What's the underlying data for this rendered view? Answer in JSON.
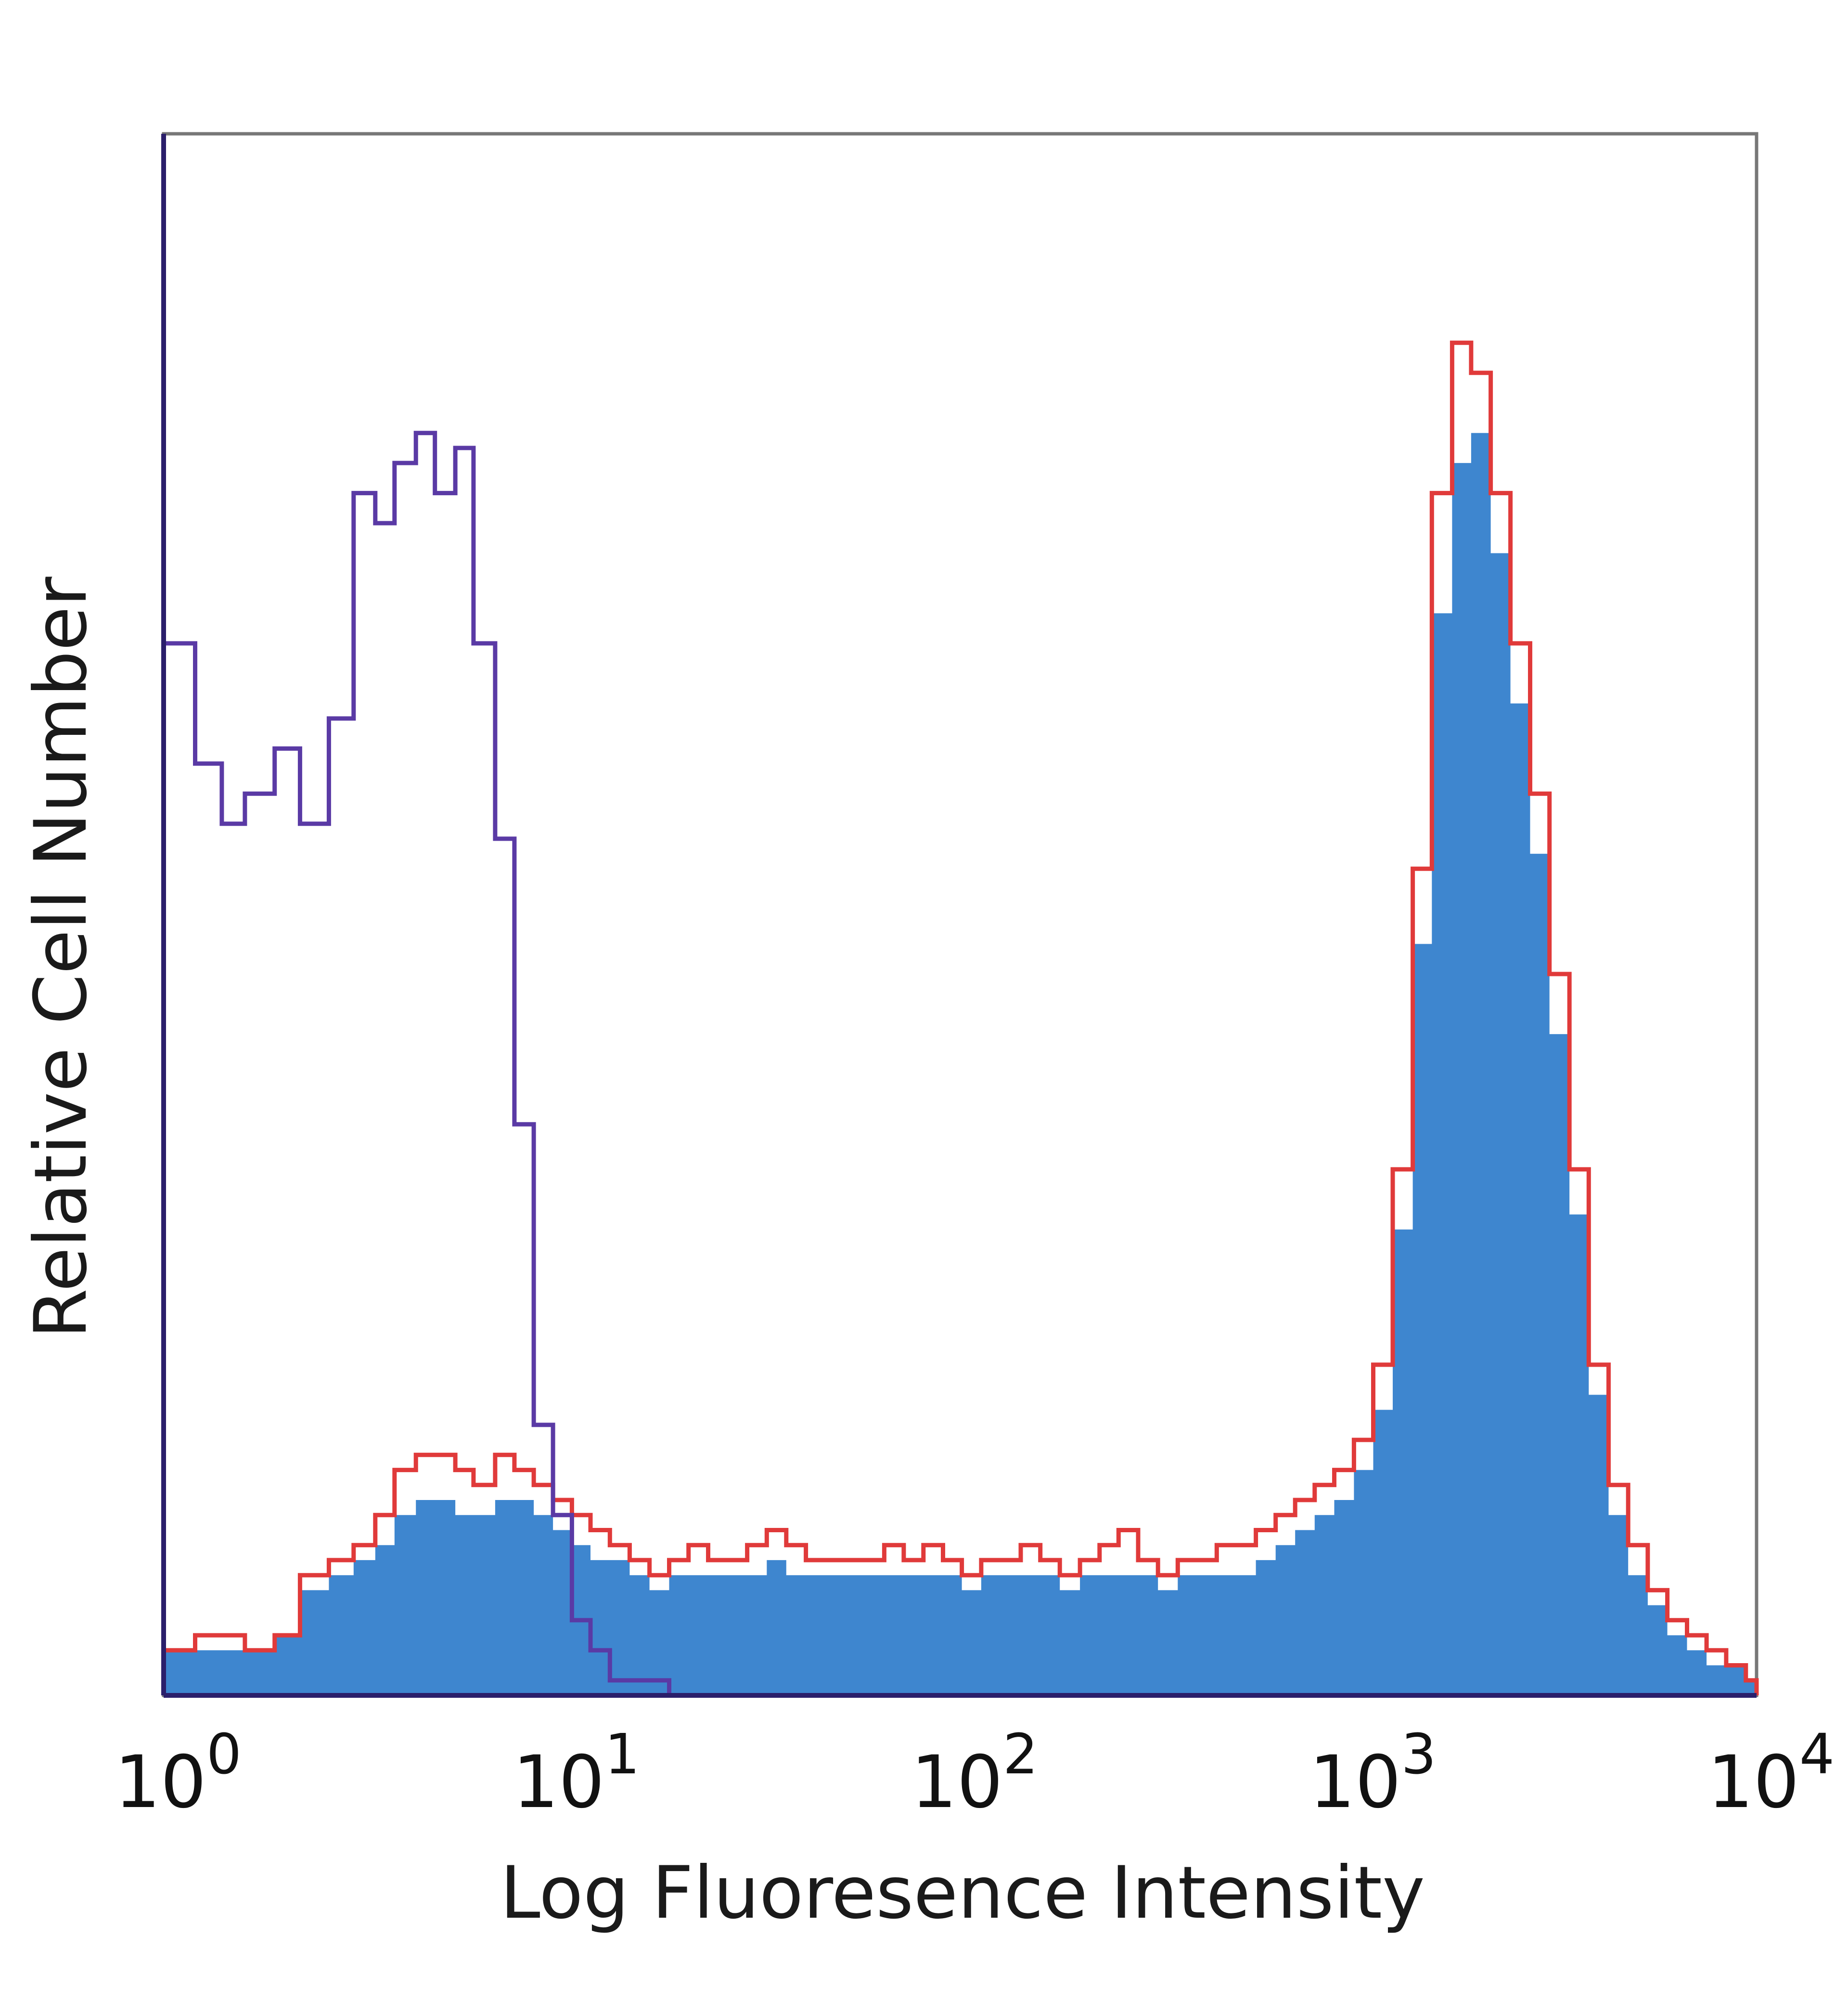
{
  "chart_data": {
    "type": "area",
    "title": "",
    "xlabel": "Log Fluoresence Intensity",
    "ylabel": "Relative Cell Number",
    "xscale": "log",
    "xlim": [
      1,
      10000
    ],
    "ylim": [
      0,
      100
    ],
    "grid": false,
    "legend": "none",
    "x_ticks": [
      {
        "value": 1,
        "base": "10",
        "exp": "0"
      },
      {
        "value": 10,
        "base": "10",
        "exp": "1"
      },
      {
        "value": 100,
        "base": "10",
        "exp": "2"
      },
      {
        "value": 1000,
        "base": "10",
        "exp": "3"
      },
      {
        "value": 10000,
        "base": "10",
        "exp": "4"
      }
    ],
    "x": [
      1.0,
      1.2,
      1.4,
      1.6,
      1.9,
      2.2,
      2.6,
      3.0,
      3.4,
      3.8,
      4.3,
      4.8,
      5.4,
      6.0,
      6.8,
      7.6,
      8.5,
      9.5,
      10.6,
      11.8,
      13.2,
      14.8,
      16.6,
      18.6,
      20.8,
      23.3,
      26.1,
      29.2,
      32.7,
      36.6,
      41.0,
      45.9,
      51.4,
      57.6,
      64.5,
      72.2,
      80.9,
      90.6,
      101,
      113,
      127,
      142,
      159,
      178,
      200,
      224,
      250,
      280,
      314,
      352,
      394,
      441,
      494,
      553,
      620,
      694,
      777,
      870,
      975,
      1090,
      1220,
      1370,
      1530,
      1720,
      1920,
      2150,
      2410,
      2700,
      3020,
      3390,
      3790,
      4250,
      4760,
      5330,
      5970,
      6690,
      7490,
      8390,
      9400,
      10000
    ],
    "series": [
      {
        "style": "line",
        "color": "#5a3aa5",
        "values": [
          70,
          62,
          58,
          60,
          63,
          58,
          65,
          80,
          78,
          82,
          84,
          80,
          83,
          70,
          57,
          38,
          18,
          12,
          5,
          3,
          1,
          1,
          1,
          0,
          0,
          0,
          0,
          0,
          0,
          0,
          0,
          0,
          0,
          0,
          0,
          0,
          0,
          0,
          0,
          0,
          0,
          0,
          0,
          0,
          0,
          0,
          0,
          0,
          0,
          0,
          0,
          0,
          0,
          0,
          0,
          0,
          0,
          0,
          0,
          0,
          0,
          0,
          0,
          0,
          0,
          0,
          0,
          0,
          0,
          0,
          0,
          0,
          0,
          0,
          0,
          0,
          0,
          0,
          0,
          0
        ]
      },
      {
        "style": "line",
        "color": "#e03a3a",
        "values": [
          3,
          4,
          4,
          3,
          4,
          8,
          9,
          10,
          12,
          15,
          16,
          16,
          15,
          14,
          16,
          15,
          14,
          13,
          12,
          11,
          10,
          9,
          8,
          9,
          10,
          9,
          9,
          10,
          11,
          10,
          9,
          9,
          9,
          9,
          10,
          9,
          10,
          9,
          8,
          9,
          9,
          10,
          9,
          8,
          9,
          10,
          11,
          9,
          8,
          9,
          9,
          10,
          10,
          11,
          12,
          13,
          14,
          15,
          17,
          22,
          35,
          55,
          80,
          90,
          88,
          80,
          70,
          60,
          48,
          35,
          22,
          14,
          10,
          7,
          5,
          4,
          3,
          2,
          1,
          0
        ]
      },
      {
        "style": "filled",
        "color": "#3e86cf",
        "values": [
          3,
          3,
          3,
          3,
          4,
          7,
          8,
          9,
          10,
          12,
          13,
          13,
          12,
          12,
          13,
          13,
          12,
          11,
          10,
          9,
          9,
          8,
          7,
          8,
          8,
          8,
          8,
          8,
          9,
          8,
          8,
          8,
          8,
          8,
          8,
          8,
          8,
          8,
          7,
          8,
          8,
          8,
          8,
          7,
          8,
          8,
          8,
          8,
          7,
          8,
          8,
          8,
          8,
          9,
          10,
          11,
          12,
          13,
          15,
          19,
          31,
          50,
          72,
          82,
          84,
          76,
          66,
          56,
          44,
          32,
          20,
          12,
          8,
          6,
          4,
          3,
          2,
          2,
          1,
          0
        ]
      }
    ]
  }
}
